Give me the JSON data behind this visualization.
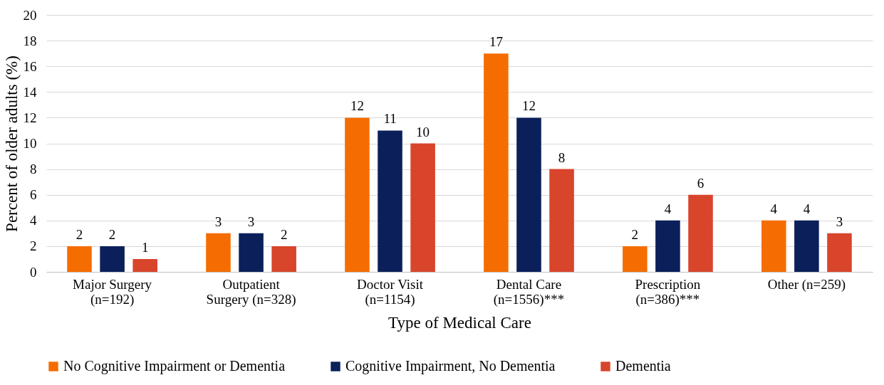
{
  "chart_data": {
    "type": "bar",
    "xlabel": "Type of Medical Care",
    "ylabel": "Percent of older adults (%)",
    "categories": [
      "Major Surgery\n(n=192)",
      "Outpatient\nSurgery (n=328)",
      "Doctor Visit\n(n=1154)",
      "Dental Care\n(n=1556)***",
      "Prescription\n(n=386)***",
      "Other (n=259)"
    ],
    "series": [
      {
        "name": "No Cognitive Impairment or Dementia",
        "color": "#f56d00",
        "values": [
          2,
          3,
          12,
          17,
          2,
          4
        ]
      },
      {
        "name": "Cognitive Impairment, No Dementia",
        "color": "#0b1f5a",
        "values": [
          2,
          3,
          11,
          12,
          4,
          4
        ]
      },
      {
        "name": "Dementia",
        "color": "#d8452b",
        "values": [
          1,
          2,
          10,
          8,
          6,
          3
        ]
      }
    ],
    "ylim": [
      0,
      20
    ],
    "yticks": [
      0,
      2,
      4,
      6,
      8,
      10,
      12,
      14,
      16,
      18,
      20
    ],
    "grid": "y",
    "legend": "bottom",
    "data_labels": true
  }
}
